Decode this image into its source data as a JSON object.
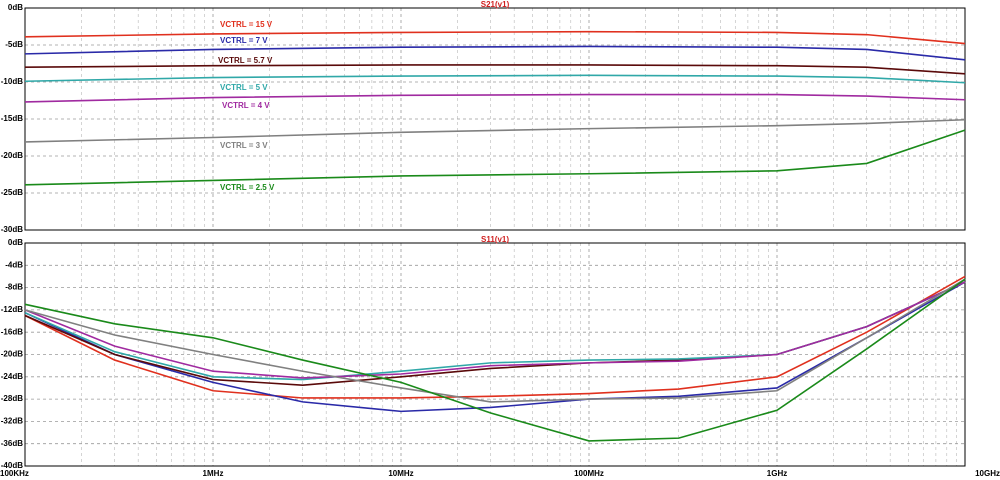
{
  "chart_data": [
    {
      "type": "line",
      "title": "S21(v1)",
      "title_color": "#d02020",
      "xscale": "log",
      "grid": true,
      "label_placement": "inline",
      "xlim": [
        100000,
        10000000000
      ],
      "ylim": [
        -30,
        0
      ],
      "yticks": [
        {
          "value": 0,
          "label": "0dB"
        },
        {
          "value": -5,
          "label": "-5dB"
        },
        {
          "value": -10,
          "label": "-10dB"
        },
        {
          "value": -15,
          "label": "-15dB"
        },
        {
          "value": -20,
          "label": "-20dB"
        },
        {
          "value": -25,
          "label": "-25dB"
        },
        {
          "value": -30,
          "label": "-30dB"
        }
      ],
      "x": [
        100000,
        1000000,
        10000000,
        100000000,
        1000000000,
        3000000000,
        10000000000
      ],
      "series": [
        {
          "name": "VCTRL = 15 V",
          "color": "#e0301e",
          "values": [
            -3.9,
            -3.5,
            -3.3,
            -3.2,
            -3.3,
            -3.6,
            -4.8
          ]
        },
        {
          "name": "VCTRL = 7 V",
          "color": "#2a2aa8",
          "values": [
            -6.2,
            -5.6,
            -5.3,
            -5.2,
            -5.3,
            -5.6,
            -7.0
          ]
        },
        {
          "name": "VCTRL = 5.7 V",
          "color": "#5a0a0a",
          "values": [
            -8.0,
            -7.8,
            -7.7,
            -7.7,
            -7.8,
            -8.0,
            -8.9
          ]
        },
        {
          "name": "VCTRL = 5 V",
          "color": "#30a8a8",
          "values": [
            -9.9,
            -9.4,
            -9.2,
            -9.1,
            -9.2,
            -9.4,
            -10.1
          ]
        },
        {
          "name": "VCTRL = 4 V",
          "color": "#a02aa0",
          "values": [
            -12.7,
            -12.1,
            -11.8,
            -11.7,
            -11.7,
            -11.9,
            -12.4
          ]
        },
        {
          "name": "VCTRL = 3 V",
          "color": "#808080",
          "values": [
            -18.1,
            -17.5,
            -16.8,
            -16.3,
            -15.9,
            -15.6,
            -15.1
          ]
        },
        {
          "name": "VCTRL = 2.5 V",
          "color": "#1a8a1a",
          "values": [
            -23.9,
            -23.3,
            -22.7,
            -22.4,
            -22.0,
            -21.0,
            -16.5
          ]
        }
      ]
    },
    {
      "type": "line",
      "title": "S11(v1)",
      "title_color": "#d02020",
      "xscale": "log",
      "grid": true,
      "xlim": [
        100000,
        10000000000
      ],
      "ylim": [
        -40,
        0
      ],
      "xticks": [
        {
          "value": 100000,
          "label": "100KHz"
        },
        {
          "value": 1000000,
          "label": "1MHz"
        },
        {
          "value": 10000000,
          "label": "10MHz"
        },
        {
          "value": 100000000,
          "label": "100MHz"
        },
        {
          "value": 1000000000,
          "label": "1GHz"
        },
        {
          "value": 10000000000,
          "label": "10GHz"
        }
      ],
      "yticks": [
        {
          "value": 0,
          "label": "0dB"
        },
        {
          "value": -4,
          "label": "-4dB"
        },
        {
          "value": -8,
          "label": "-8dB"
        },
        {
          "value": -12,
          "label": "-12dB"
        },
        {
          "value": -16,
          "label": "-16dB"
        },
        {
          "value": -20,
          "label": "-20dB"
        },
        {
          "value": -24,
          "label": "-24dB"
        },
        {
          "value": -28,
          "label": "-28dB"
        },
        {
          "value": -32,
          "label": "-32dB"
        },
        {
          "value": -36,
          "label": "-36dB"
        },
        {
          "value": -40,
          "label": "-40dB"
        }
      ],
      "x": [
        100000,
        300000,
        1000000,
        3000000,
        10000000,
        30000000,
        100000000,
        300000000,
        1000000000,
        3000000000,
        10000000000
      ],
      "series": [
        {
          "color": "#e0301e",
          "values": [
            -13,
            -21,
            -26.5,
            -27.8,
            -27.8,
            -27.5,
            -27,
            -26.2,
            -24,
            -16,
            -6
          ]
        },
        {
          "color": "#2a2aa8",
          "values": [
            -12.5,
            -20,
            -25,
            -28.5,
            -30.2,
            -29.5,
            -28,
            -27.5,
            -26,
            -17,
            -7
          ]
        },
        {
          "color": "#5a0a0a",
          "values": [
            -13,
            -20,
            -24.5,
            -25.5,
            -24,
            -22.5,
            -21.5,
            -21,
            -20,
            -15,
            -7
          ]
        },
        {
          "color": "#30a8a8",
          "values": [
            -12.5,
            -19.5,
            -24,
            -24.5,
            -23,
            -21.5,
            -21,
            -20.8,
            -20,
            -15,
            -7
          ]
        },
        {
          "color": "#a02aa0",
          "values": [
            -12,
            -18.5,
            -23,
            -24.2,
            -23.5,
            -22,
            -21.5,
            -21.2,
            -20,
            -15,
            -7
          ]
        },
        {
          "color": "#808080",
          "values": [
            -12,
            -16.5,
            -20,
            -23,
            -26,
            -28.5,
            -28,
            -27.8,
            -26.5,
            -17,
            -6.5
          ]
        },
        {
          "color": "#1a8a1a",
          "values": [
            -11,
            -14.5,
            -17,
            -21,
            -25,
            -30.5,
            -35.5,
            -35,
            -30,
            -19,
            -6.5
          ]
        }
      ]
    }
  ]
}
